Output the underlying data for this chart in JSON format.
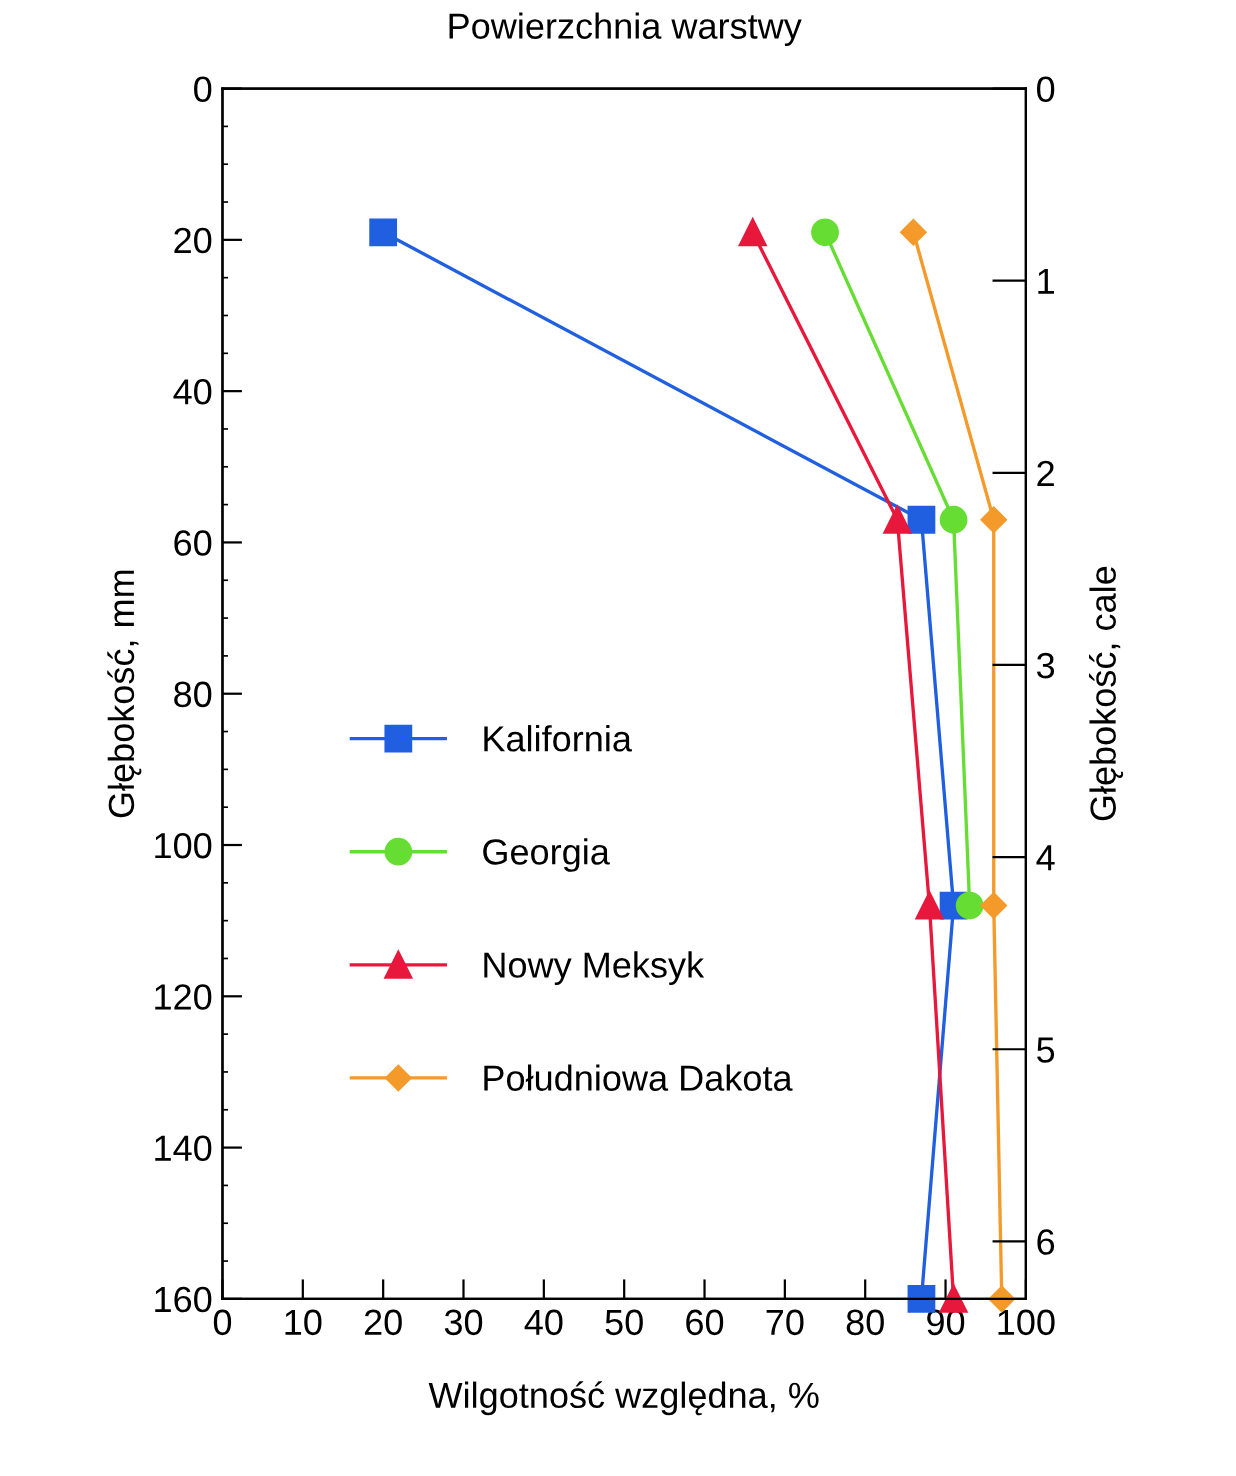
{
  "chart_data": {
    "type": "line",
    "title": "Powierzchnia warstwy",
    "xlabel": "Wilgotność względna, %",
    "ylabel": "Głębokość, mm",
    "y2label": "Głębokość, cale",
    "xlim": [
      0,
      100
    ],
    "xticks": [
      0,
      10,
      20,
      30,
      40,
      50,
      60,
      70,
      80,
      90,
      100
    ],
    "ylim": [
      160,
      0
    ],
    "yticks": [
      0,
      20,
      40,
      60,
      80,
      100,
      120,
      140,
      160
    ],
    "y2lim": [
      6.2992,
      0
    ],
    "y2ticks": [
      0,
      1,
      2,
      3,
      4,
      5,
      6
    ],
    "grid": false,
    "legend": "left",
    "series": [
      {
        "name": "Kalifornia",
        "color": "#1f5fe0",
        "marker": "square",
        "x": [
          20,
          87,
          91,
          87
        ],
        "values": [
          19,
          57,
          108,
          160
        ]
      },
      {
        "name": "Georgia",
        "color": "#66dd33",
        "marker": "circle",
        "x": [
          75,
          91,
          93
        ],
        "values": [
          19,
          57,
          108
        ]
      },
      {
        "name": "Nowy Meksyk",
        "color": "#e8183c",
        "marker": "triangle",
        "x": [
          66,
          84,
          88,
          91
        ],
        "values": [
          19,
          57,
          108,
          160
        ]
      },
      {
        "name": "Południowa Dakota",
        "color": "#f39a2a",
        "marker": "diamond",
        "x": [
          86,
          96,
          96,
          97
        ],
        "values": [
          19,
          57,
          108,
          160
        ]
      }
    ]
  }
}
